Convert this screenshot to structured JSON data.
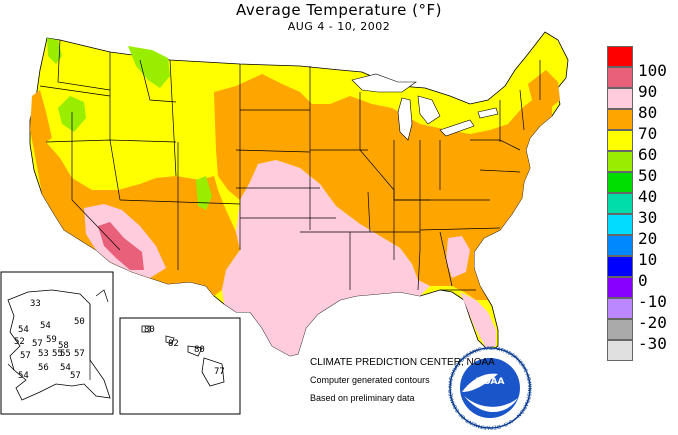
{
  "title": "Average Temperature (°F)",
  "subtitle": "AUG 4 - 10, 2002",
  "legend": [
    {
      "label": "100",
      "color": "#ff0000"
    },
    {
      "label": "90",
      "color": "#e8607a"
    },
    {
      "label": "80",
      "color": "#ffccdd"
    },
    {
      "label": "70",
      "color": "#ffa500"
    },
    {
      "label": "60",
      "color": "#ffff00"
    },
    {
      "label": "50",
      "color": "#99ee00"
    },
    {
      "label": "40",
      "color": "#00dd00"
    },
    {
      "label": "30",
      "color": "#00ddaa"
    },
    {
      "label": "20",
      "color": "#00ddff"
    },
    {
      "label": "10",
      "color": "#0088ff"
    },
    {
      "label": "0",
      "color": "#0000ff"
    },
    {
      "label": "-10",
      "color": "#8800ff"
    },
    {
      "label": "-20",
      "color": "#bb88ff"
    },
    {
      "label": "-30",
      "color": "#aaaaaa"
    },
    {
      "label": "",
      "color": "#e0e0e0"
    }
  ],
  "alaska_values": [
    "33",
    "50",
    "54",
    "54",
    "59",
    "52",
    "57",
    "53",
    "58",
    "57",
    "55",
    "55",
    "57",
    "56",
    "54",
    "54",
    "57"
  ],
  "hawaii_values": [
    "80",
    "82",
    "80",
    "77"
  ],
  "credits": {
    "center": "CLIMATE PREDICTION CENTER, NOAA",
    "contours": "Computer generated contours",
    "preliminary": "Based on preliminary data"
  },
  "logo": {
    "text": "NOAA",
    "ring_text": "NATIONAL OCEANIC AND ATMOSPHERIC ADMINISTRATION • U.S. DEPARTMENT OF COMMERCE"
  }
}
